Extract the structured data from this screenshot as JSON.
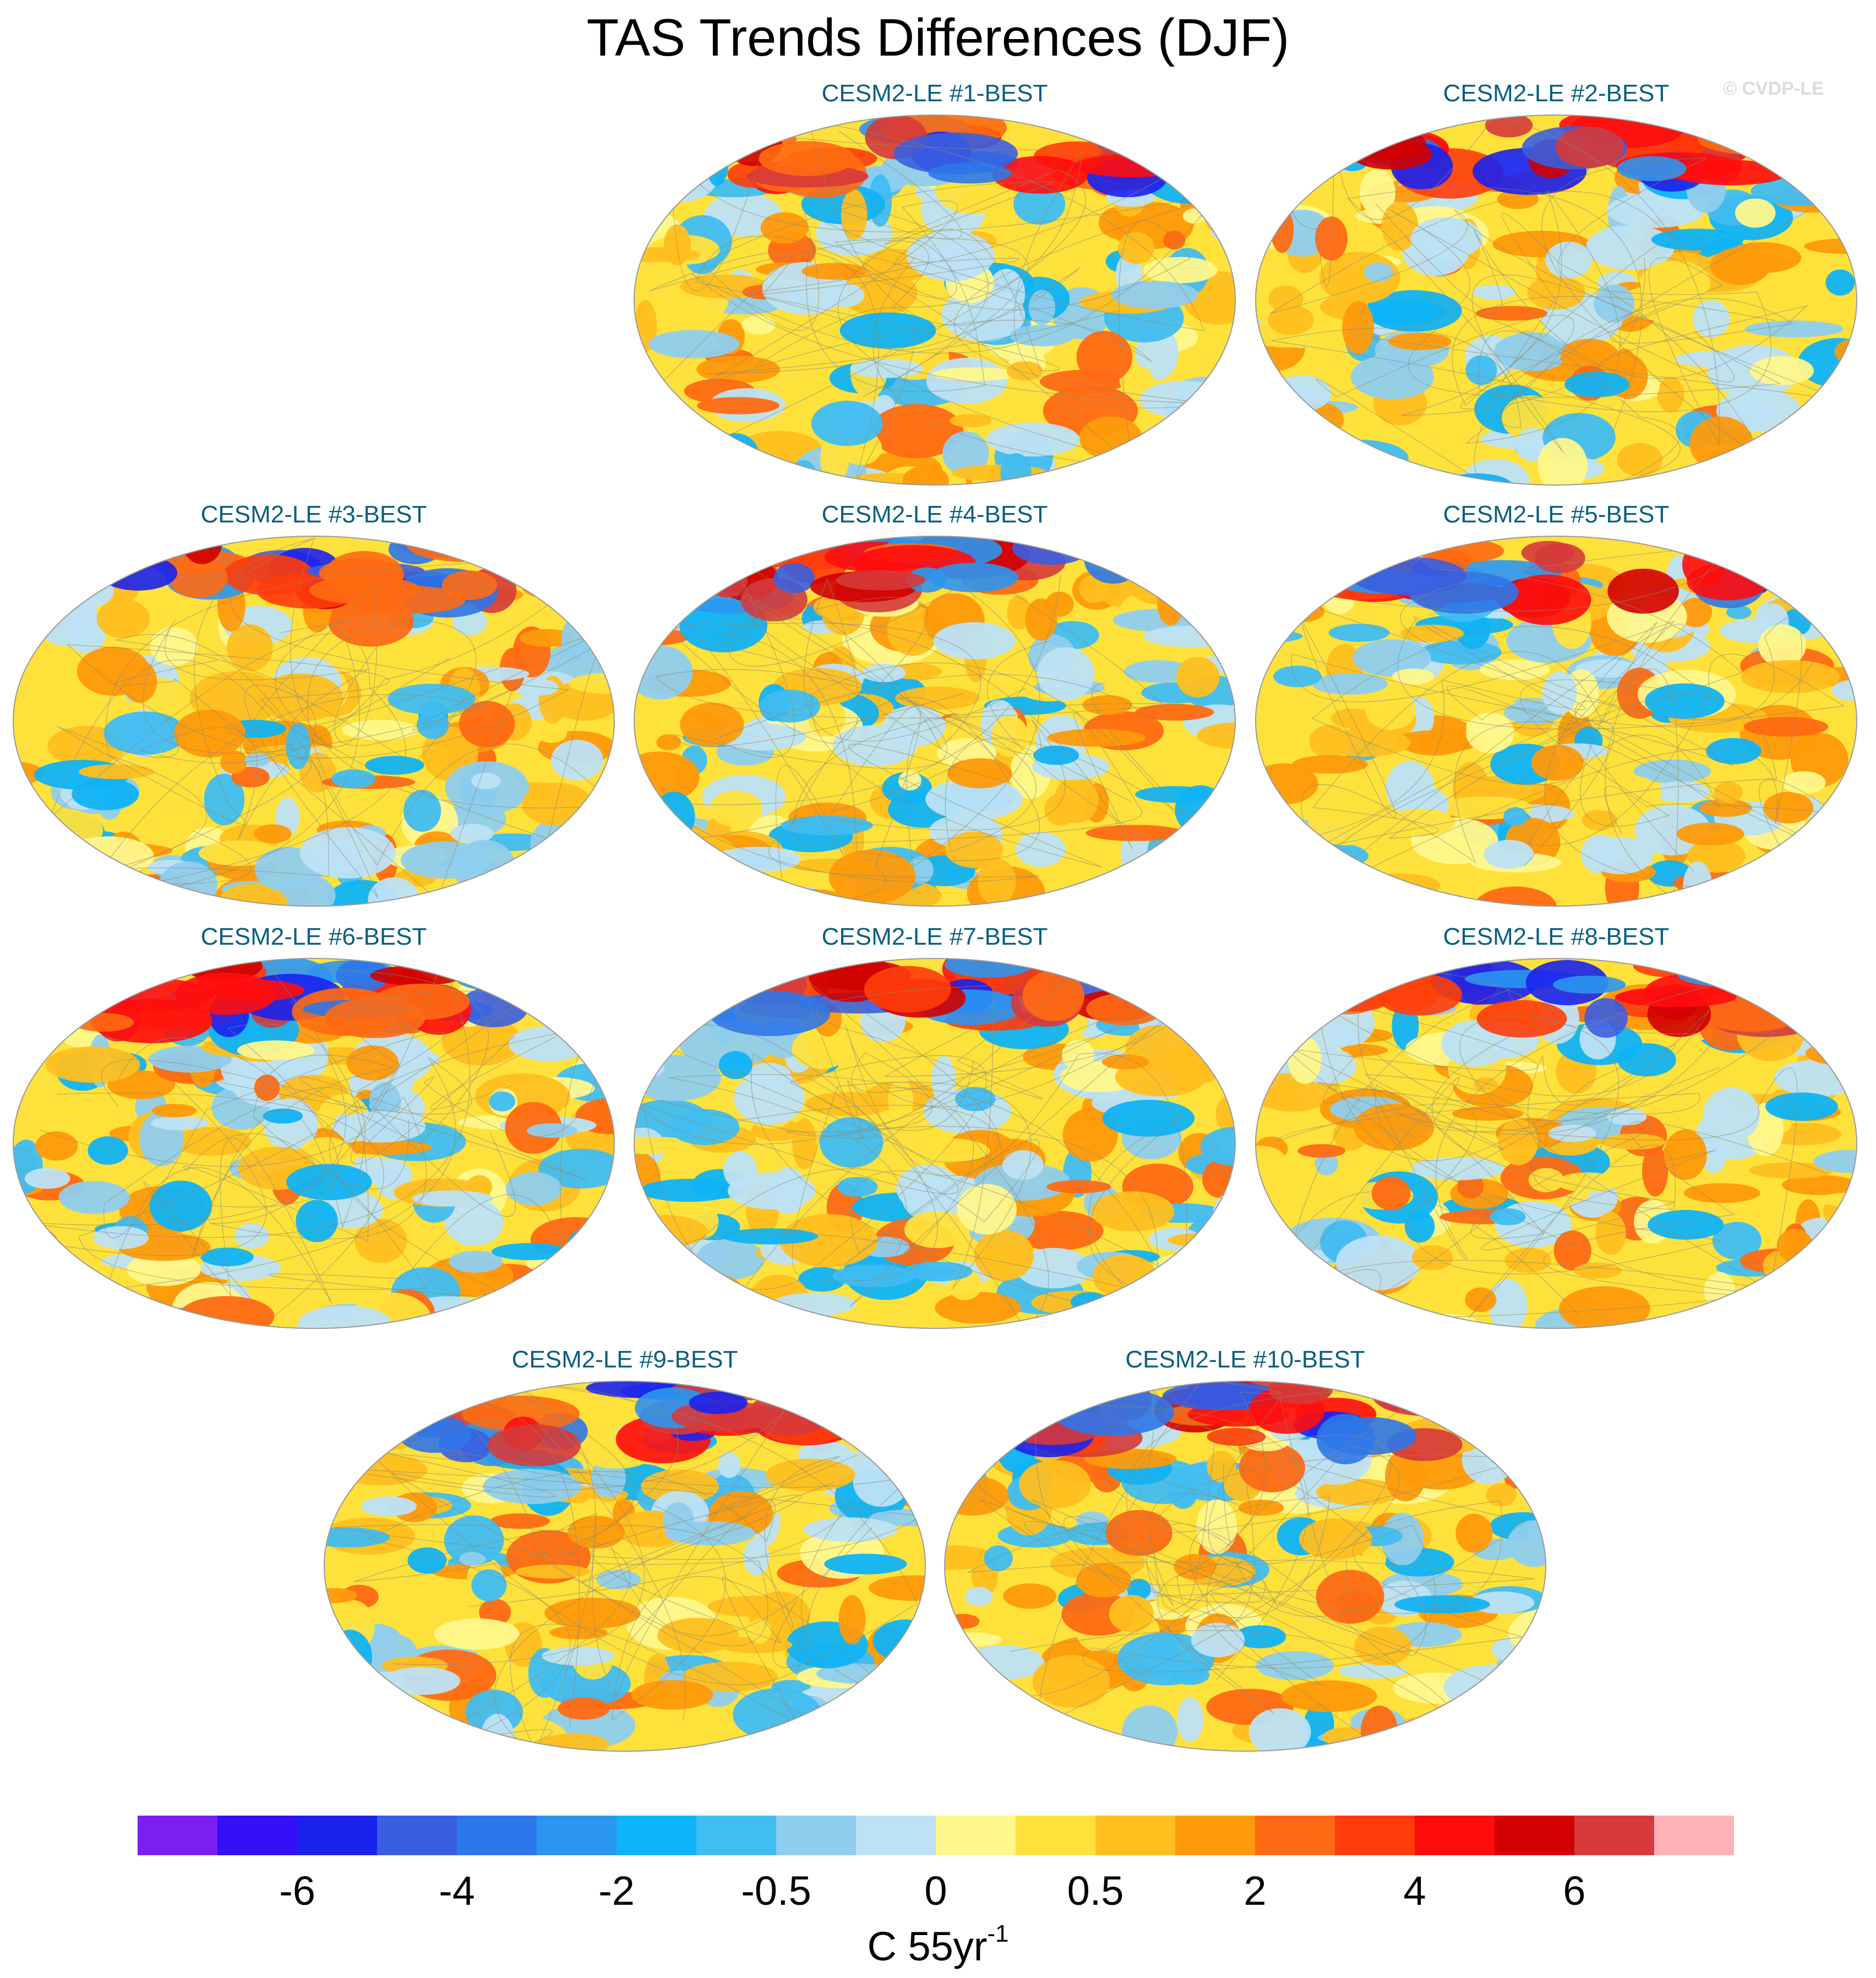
{
  "title": "TAS Trends Differences (DJF)",
  "watermark": "© CVDP-LE",
  "panels": [
    {
      "title": "CESM2-LE #1-BEST"
    },
    {
      "title": "CESM2-LE #2-BEST"
    },
    {
      "title": "CESM2-LE #3-BEST"
    },
    {
      "title": "CESM2-LE #4-BEST"
    },
    {
      "title": "CESM2-LE #5-BEST"
    },
    {
      "title": "CESM2-LE #6-BEST"
    },
    {
      "title": "CESM2-LE #7-BEST"
    },
    {
      "title": "CESM2-LE #8-BEST"
    },
    {
      "title": "CESM2-LE #9-BEST"
    },
    {
      "title": "CESM2-LE #10-BEST"
    }
  ],
  "colorbar": {
    "colors": [
      "#7b1ef0",
      "#3310f5",
      "#1a22ee",
      "#3a5ee0",
      "#2e77ea",
      "#2b96f2",
      "#0fb3f7",
      "#40bdf2",
      "#8fcdee",
      "#bde1f6",
      "#fff78c",
      "#ffe13c",
      "#ffbf1f",
      "#ff9a0a",
      "#ff6a12",
      "#ff3c0a",
      "#ff0d0d",
      "#d20000",
      "#d63a3a",
      "#ffb3b8"
    ],
    "labels": [
      "-6",
      "-4",
      "-2",
      "-0.5",
      "0",
      "0.5",
      "2",
      "4",
      "6"
    ],
    "label_positions": [
      2,
      4,
      6,
      8,
      10,
      12,
      14,
      16,
      18
    ],
    "units": "C 55yr",
    "units_exp": "-1"
  }
}
